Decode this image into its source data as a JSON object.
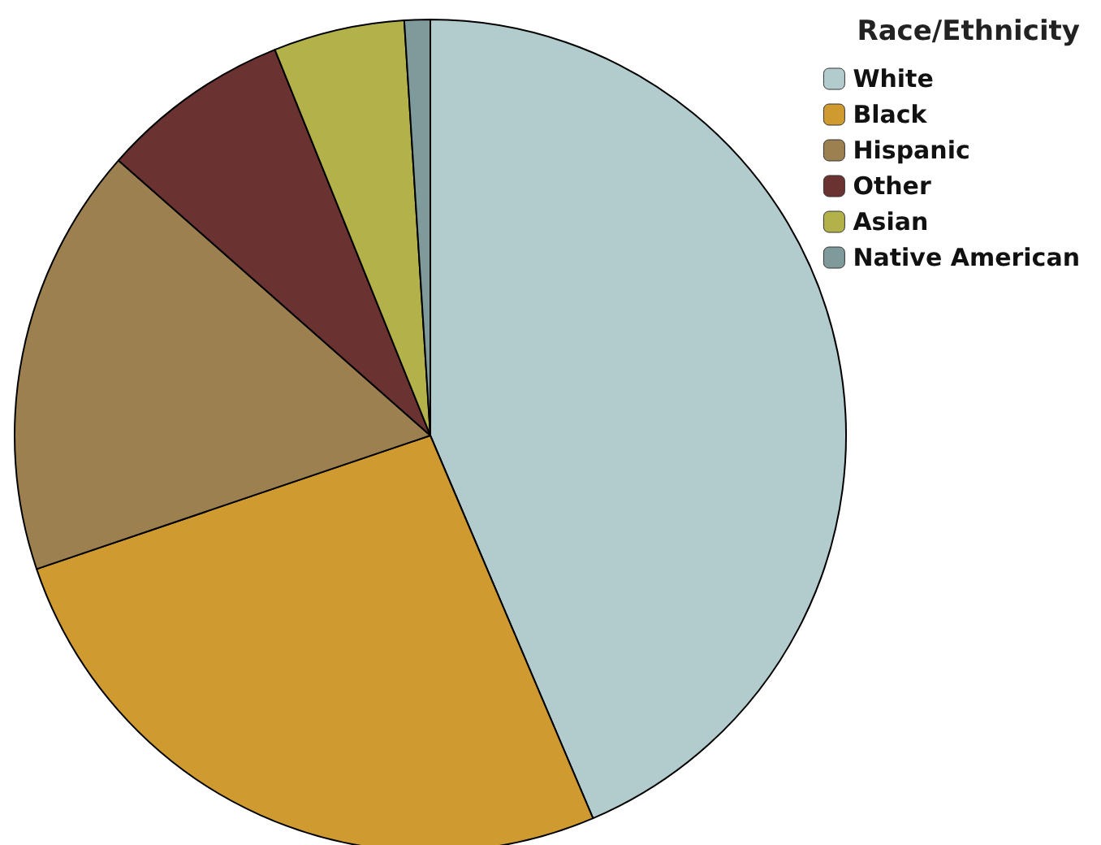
{
  "chart_data": {
    "type": "pie",
    "legend_title": "Race/Ethnicity",
    "legend": "top right",
    "categories": [
      "White",
      "Black",
      "Hispanic",
      "Other",
      "Asian",
      "Native American"
    ],
    "values": [
      43.6,
      26.2,
      16.7,
      7.4,
      5.1,
      1.0
    ],
    "colors": [
      "#b2cbcd",
      "#cf9a30",
      "#9c804f",
      "#6b3232",
      "#b3b24a",
      "#7f9a9a"
    ]
  }
}
